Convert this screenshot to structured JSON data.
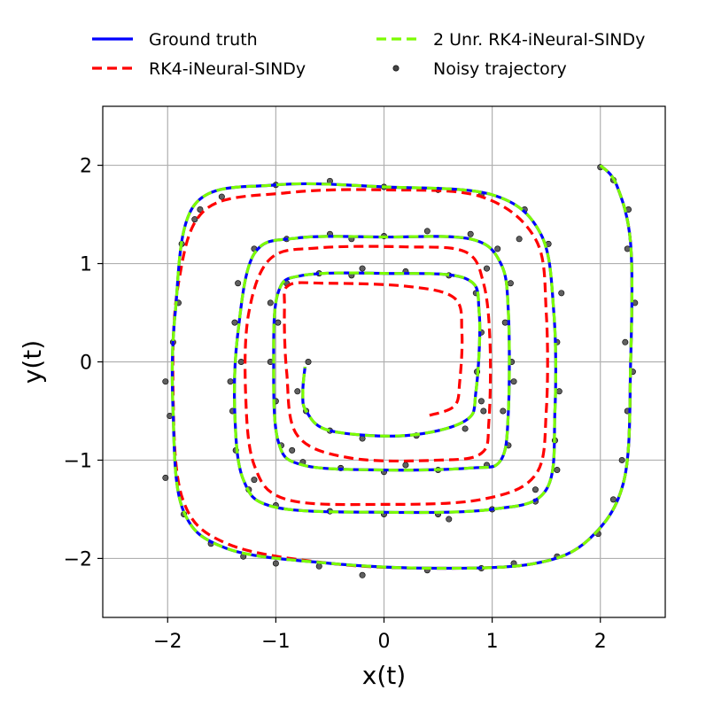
{
  "chart_data": {
    "type": "line",
    "xlabel": "x(t)",
    "ylabel": "y(t)",
    "xlim": [
      -2.6,
      2.6
    ],
    "ylim": [
      -2.6,
      2.6
    ],
    "xticks": [
      -2,
      -1,
      0,
      1,
      2
    ],
    "yticks": [
      -2,
      -1,
      0,
      1,
      2
    ],
    "xtick_labels": [
      "−2",
      "−1",
      "0",
      "1",
      "2"
    ],
    "ytick_labels": [
      "−2",
      "−1",
      "0",
      "1",
      "2"
    ],
    "grid": true,
    "legend_position": "top, outside plot, 2 columns",
    "series": [
      {
        "name": "Ground truth",
        "style": "solid",
        "color": "#0000ff",
        "x": [
          2.0,
          2.15,
          2.28,
          2.28,
          2.22,
          1.9,
          1.4,
          0.5,
          -0.5,
          -1.45,
          -1.86,
          -1.95,
          -1.93,
          -1.75,
          -1.0,
          0.0,
          1.0,
          1.45,
          1.57,
          1.58,
          1.5,
          1.0,
          0.0,
          -1.0,
          -1.3,
          -1.38,
          -1.35,
          -1.2,
          -0.8,
          0.0,
          0.8,
          1.08,
          1.15,
          1.15,
          1.08,
          0.8,
          0.0,
          -0.75,
          -0.98,
          -1.02,
          -0.98,
          -0.75,
          0.0,
          0.75,
          0.88,
          0.85,
          0.75,
          0.2,
          -0.5,
          -0.72,
          -0.75,
          -0.73
        ],
        "y": [
          2.0,
          1.8,
          1.2,
          0.0,
          -1.2,
          -1.8,
          -2.05,
          -2.1,
          -2.05,
          -1.9,
          -1.5,
          -0.5,
          0.5,
          1.6,
          1.8,
          1.78,
          1.7,
          1.3,
          0.5,
          -0.5,
          -1.3,
          -1.5,
          -1.53,
          -1.48,
          -1.2,
          -0.5,
          0.3,
          1.1,
          1.26,
          1.27,
          1.25,
          1.0,
          0.5,
          -0.5,
          -1.0,
          -1.08,
          -1.1,
          -1.05,
          -0.8,
          0.0,
          0.7,
          0.88,
          0.9,
          0.85,
          0.5,
          -0.3,
          -0.6,
          -0.75,
          -0.7,
          -0.5,
          -0.3,
          -0.05
        ]
      },
      {
        "name": "RK4-iNeural-SINDy",
        "style": "dashed",
        "color": "#ff0000",
        "x": [
          2.0,
          2.15,
          2.28,
          2.28,
          2.22,
          1.9,
          1.4,
          0.5,
          -0.5,
          -1.45,
          -1.86,
          -1.95,
          -1.9,
          -1.65,
          -0.9,
          0.0,
          0.9,
          1.4,
          1.5,
          1.5,
          1.4,
          0.9,
          0.0,
          -0.9,
          -1.2,
          -1.28,
          -1.25,
          -1.05,
          -0.6,
          0.2,
          0.75,
          0.92,
          0.98,
          0.97,
          0.9,
          0.5,
          -0.3,
          -0.8,
          -0.9,
          -0.92,
          -0.88,
          -0.55,
          0.2,
          0.65,
          0.72,
          0.7,
          0.65,
          0.4
        ],
        "y": [
          2.0,
          1.8,
          1.2,
          0.0,
          -1.2,
          -1.8,
          -2.05,
          -2.1,
          -2.05,
          -1.85,
          -1.4,
          -0.3,
          0.8,
          1.55,
          1.72,
          1.75,
          1.68,
          1.25,
          0.5,
          -0.5,
          -1.15,
          -1.4,
          -1.45,
          -1.4,
          -1.05,
          -0.3,
          0.5,
          1.05,
          1.16,
          1.17,
          1.12,
          0.8,
          0.2,
          -0.6,
          -0.93,
          -1.0,
          -0.98,
          -0.75,
          -0.1,
          0.55,
          0.78,
          0.8,
          0.77,
          0.65,
          0.3,
          -0.2,
          -0.45,
          -0.55
        ]
      },
      {
        "name": "2 Unr. RK4-iNeural-SINDy",
        "style": "dashed",
        "color": "#7cfc00",
        "x": [
          2.0,
          2.15,
          2.28,
          2.28,
          2.22,
          1.9,
          1.4,
          0.5,
          -0.5,
          -1.45,
          -1.86,
          -1.95,
          -1.93,
          -1.75,
          -1.0,
          0.0,
          1.0,
          1.45,
          1.57,
          1.58,
          1.5,
          1.0,
          0.0,
          -1.0,
          -1.3,
          -1.38,
          -1.35,
          -1.2,
          -0.8,
          0.0,
          0.8,
          1.08,
          1.15,
          1.15,
          1.08,
          0.8,
          0.0,
          -0.75,
          -0.98,
          -1.02,
          -0.98,
          -0.75,
          0.0,
          0.75,
          0.88,
          0.85,
          0.75,
          0.2,
          -0.5,
          -0.72,
          -0.75,
          -0.73
        ],
        "y": [
          2.0,
          1.8,
          1.2,
          0.0,
          -1.2,
          -1.8,
          -2.05,
          -2.1,
          -2.05,
          -1.9,
          -1.5,
          -0.5,
          0.5,
          1.6,
          1.8,
          1.78,
          1.7,
          1.3,
          0.5,
          -0.5,
          -1.3,
          -1.5,
          -1.53,
          -1.48,
          -1.2,
          -0.5,
          0.3,
          1.1,
          1.26,
          1.27,
          1.25,
          1.0,
          0.5,
          -0.5,
          -1.0,
          -1.08,
          -1.1,
          -1.05,
          -0.8,
          0.0,
          0.7,
          0.88,
          0.9,
          0.85,
          0.5,
          -0.3,
          -0.6,
          -0.75,
          -0.7,
          -0.5,
          -0.3,
          -0.05
        ]
      }
    ],
    "scatter": {
      "name": "Noisy trajectory",
      "color": "#444444",
      "points": [
        [
          2.0,
          1.98
        ],
        [
          2.12,
          1.85
        ],
        [
          2.26,
          1.55
        ],
        [
          2.25,
          1.15
        ],
        [
          2.32,
          0.6
        ],
        [
          2.23,
          0.2
        ],
        [
          2.3,
          -0.1
        ],
        [
          2.25,
          -0.5
        ],
        [
          2.2,
          -1.0
        ],
        [
          2.12,
          -1.4
        ],
        [
          1.98,
          -1.75
        ],
        [
          1.6,
          -1.98
        ],
        [
          1.2,
          -2.05
        ],
        [
          0.9,
          -2.1
        ],
        [
          0.4,
          -2.12
        ],
        [
          -0.2,
          -2.17
        ],
        [
          -0.6,
          -2.08
        ],
        [
          -1.0,
          -2.05
        ],
        [
          -1.3,
          -1.98
        ],
        [
          -1.6,
          -1.85
        ],
        [
          -1.85,
          -1.55
        ],
        [
          -2.02,
          -1.18
        ],
        [
          -1.98,
          -0.55
        ],
        [
          -2.02,
          -0.2
        ],
        [
          -1.95,
          0.2
        ],
        [
          -1.9,
          0.6
        ],
        [
          -1.87,
          1.2
        ],
        [
          -1.75,
          1.45
        ],
        [
          -1.5,
          1.68
        ],
        [
          -1.0,
          1.8
        ],
        [
          -0.5,
          1.84
        ],
        [
          0.0,
          1.78
        ],
        [
          0.5,
          1.75
        ],
        [
          0.9,
          1.7
        ],
        [
          1.3,
          1.55
        ],
        [
          1.52,
          1.2
        ],
        [
          1.64,
          0.7
        ],
        [
          1.6,
          0.2
        ],
        [
          1.62,
          -0.3
        ],
        [
          1.58,
          -0.8
        ],
        [
          1.6,
          -1.1
        ],
        [
          1.4,
          -1.42
        ],
        [
          1.0,
          -1.5
        ],
        [
          0.5,
          -1.55
        ],
        [
          0.0,
          -1.55
        ],
        [
          -0.5,
          -1.52
        ],
        [
          -1.0,
          -1.46
        ],
        [
          -1.25,
          -1.3
        ],
        [
          -1.37,
          -0.9
        ],
        [
          -1.4,
          -0.5
        ],
        [
          -1.32,
          0.0
        ],
        [
          -1.38,
          0.4
        ],
        [
          -1.35,
          0.8
        ],
        [
          -1.2,
          1.15
        ],
        [
          -0.9,
          1.25
        ],
        [
          -0.5,
          1.3
        ],
        [
          0.0,
          1.28
        ],
        [
          0.4,
          1.33
        ],
        [
          0.8,
          1.3
        ],
        [
          1.05,
          1.15
        ],
        [
          1.17,
          0.8
        ],
        [
          1.12,
          0.4
        ],
        [
          1.18,
          0.0
        ],
        [
          1.1,
          -0.5
        ],
        [
          1.15,
          -0.85
        ],
        [
          0.95,
          -1.05
        ],
        [
          0.5,
          -1.1
        ],
        [
          0.0,
          -1.12
        ],
        [
          -0.4,
          -1.08
        ],
        [
          -0.75,
          -1.02
        ],
        [
          -0.95,
          -0.85
        ],
        [
          -1.0,
          -0.4
        ],
        [
          -1.05,
          0.0
        ],
        [
          -0.98,
          0.4
        ],
        [
          -0.9,
          0.8
        ],
        [
          -0.6,
          0.9
        ],
        [
          -0.2,
          0.95
        ],
        [
          0.2,
          0.92
        ],
        [
          0.6,
          0.88
        ],
        [
          0.85,
          0.7
        ],
        [
          0.9,
          0.3
        ],
        [
          0.86,
          -0.1
        ],
        [
          0.9,
          -0.4
        ],
        [
          0.75,
          -0.68
        ],
        [
          0.3,
          -0.75
        ],
        [
          -0.2,
          -0.78
        ],
        [
          -0.5,
          -0.7
        ],
        [
          -0.72,
          -0.5
        ],
        [
          -0.8,
          -0.3
        ],
        [
          -0.7,
          0.0
        ],
        [
          1.4,
          -1.3
        ],
        [
          -1.7,
          1.55
        ],
        [
          -0.85,
          -0.9
        ],
        [
          0.95,
          0.95
        ],
        [
          -1.2,
          -1.2
        ],
        [
          1.25,
          1.25
        ],
        [
          0.6,
          -1.6
        ],
        [
          -0.3,
          1.25
        ],
        [
          1.2,
          -0.2
        ],
        [
          -1.42,
          -0.2
        ],
        [
          0.2,
          -1.05
        ],
        [
          -0.3,
          0.88
        ],
        [
          0.92,
          -0.5
        ],
        [
          -1.05,
          0.6
        ]
      ]
    },
    "legend": [
      {
        "label": "Ground truth",
        "kind": "solid",
        "color": "#0000ff"
      },
      {
        "label": "2 Unr. RK4-iNeural-SINDy",
        "kind": "dashed",
        "color": "#7cfc00"
      },
      {
        "label": "RK4-iNeural-SINDy",
        "kind": "dashed",
        "color": "#ff0000"
      },
      {
        "label": "Noisy trajectory",
        "kind": "marker",
        "color": "#444444"
      }
    ]
  }
}
